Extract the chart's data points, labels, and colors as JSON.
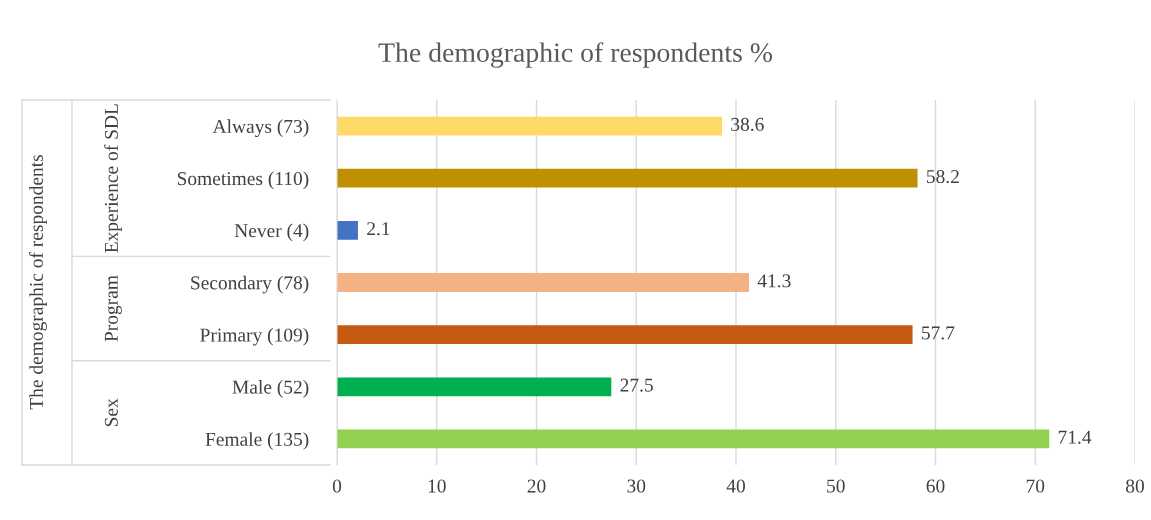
{
  "chart_data": {
    "type": "bar",
    "orientation": "horizontal",
    "title": "The demographic of respondents %",
    "categories": [
      "Always (73)",
      "Sometimes (110)",
      "Never (4)",
      "Secondary (78)",
      "Primary (109)",
      "Male (52)",
      "Female (135)"
    ],
    "values": [
      38.6,
      58.2,
      2.1,
      41.3,
      57.7,
      27.5,
      71.4
    ],
    "colors": [
      "#ffd966",
      "#bf9000",
      "#4472c4",
      "#f4b183",
      "#c55a11",
      "#00b050",
      "#92d050"
    ],
    "annotations": [
      "The demographic of respondents",
      "Experience of SDL",
      "Program",
      "Sex"
    ],
    "xlim": [
      0,
      80
    ],
    "xticks": [
      0,
      10,
      20,
      30,
      40,
      50,
      60,
      70,
      80
    ],
    "grid": "x",
    "data_labels": true
  }
}
